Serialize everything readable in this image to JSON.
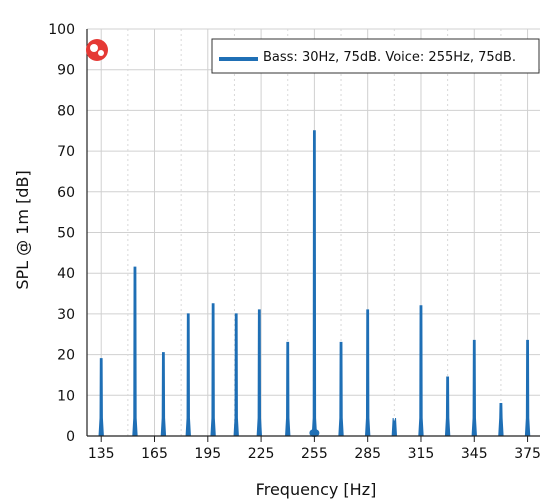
{
  "chart_data": {
    "type": "line",
    "xlabel": "Frequency [Hz]",
    "ylabel": "SPL @ 1m [dB]",
    "xlim": [
      127,
      382
    ],
    "ylim": [
      0,
      100
    ],
    "x_ticks": [
      135,
      165,
      195,
      225,
      255,
      285,
      315,
      345,
      375
    ],
    "y_ticks": [
      0,
      10,
      20,
      30,
      40,
      50,
      60,
      70,
      80,
      90,
      100
    ],
    "grid": true,
    "legend_position": "top-right",
    "series": [
      {
        "name": "Bass: 30Hz, 75dB. Voice: 255Hz, 75dB.",
        "color": "#1f6fb5",
        "peaks": [
          {
            "x": 135,
            "y": 19
          },
          {
            "x": 154,
            "y": 41.5
          },
          {
            "x": 170,
            "y": 20.5
          },
          {
            "x": 184,
            "y": 30
          },
          {
            "x": 198,
            "y": 32.5
          },
          {
            "x": 211,
            "y": 30
          },
          {
            "x": 224,
            "y": 31
          },
          {
            "x": 240,
            "y": 23
          },
          {
            "x": 255,
            "y": 75
          },
          {
            "x": 270,
            "y": 23
          },
          {
            "x": 285,
            "y": 31
          },
          {
            "x": 300,
            "y": 3.7
          },
          {
            "x": 315,
            "y": 32
          },
          {
            "x": 330,
            "y": 14.5
          },
          {
            "x": 345,
            "y": 23.5
          },
          {
            "x": 360,
            "y": 8
          },
          {
            "x": 375,
            "y": 23.5
          }
        ]
      }
    ]
  },
  "logo": {
    "name": "brand-logo-icon",
    "color": "#e53935"
  }
}
